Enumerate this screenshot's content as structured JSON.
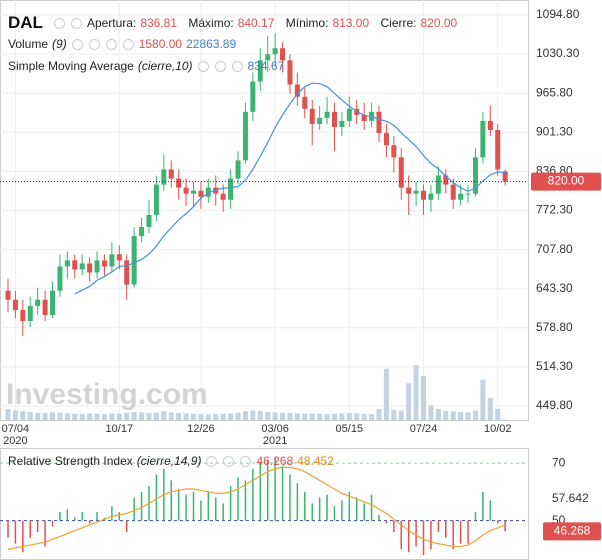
{
  "chart_data": [
    {
      "type": "candlestick",
      "symbol": "DAL",
      "quote": [
        {
          "label": "Apertura:",
          "value": "836.81"
        },
        {
          "label": "Máximo:",
          "value": "840.17"
        },
        {
          "label": "Mínimo:",
          "value": "813.00"
        },
        {
          "label": "Cierre:",
          "value": "820.00"
        }
      ],
      "categories": [
        null,
        "07/04",
        null,
        null,
        null,
        null,
        null,
        null,
        null,
        null,
        null,
        null,
        null,
        null,
        null,
        "10/17",
        null,
        null,
        null,
        null,
        null,
        null,
        null,
        null,
        null,
        null,
        "12/26",
        null,
        null,
        null,
        null,
        null,
        null,
        null,
        null,
        null,
        "03/06",
        null,
        null,
        null,
        null,
        null,
        null,
        null,
        null,
        null,
        "05/15",
        null,
        null,
        null,
        null,
        null,
        null,
        null,
        null,
        null,
        "07/24",
        null,
        null,
        null,
        null,
        null,
        null,
        null,
        null,
        null,
        "10/02",
        null
      ],
      "year_marks": [
        {
          "category": "07/04",
          "label": "2020"
        },
        {
          "category": "03/06",
          "label": "2021"
        }
      ],
      "ohlc": [
        [
          640,
          660,
          605,
          625
        ],
        [
          625,
          640,
          595,
          608
        ],
        [
          608,
          625,
          565,
          590
        ],
        [
          590,
          630,
          580,
          615
        ],
        [
          615,
          645,
          600,
          625
        ],
        [
          625,
          640,
          590,
          600
        ],
        [
          600,
          655,
          595,
          640
        ],
        [
          640,
          700,
          630,
          680
        ],
        [
          680,
          705,
          660,
          690
        ],
        [
          690,
          700,
          660,
          675
        ],
        [
          675,
          700,
          665,
          685
        ],
        [
          685,
          695,
          655,
          670
        ],
        [
          670,
          705,
          660,
          690
        ],
        [
          690,
          700,
          665,
          680
        ],
        [
          680,
          720,
          670,
          700
        ],
        [
          700,
          715,
          675,
          690
        ],
        [
          690,
          700,
          625,
          650
        ],
        [
          650,
          745,
          645,
          730
        ],
        [
          730,
          760,
          720,
          745
        ],
        [
          745,
          790,
          735,
          765
        ],
        [
          765,
          830,
          755,
          815
        ],
        [
          815,
          865,
          805,
          840
        ],
        [
          840,
          855,
          810,
          825
        ],
        [
          825,
          840,
          790,
          810
        ],
        [
          810,
          825,
          780,
          800
        ],
        [
          800,
          820,
          780,
          805
        ],
        [
          805,
          820,
          775,
          795
        ],
        [
          795,
          825,
          785,
          810
        ],
        [
          810,
          830,
          780,
          800
        ],
        [
          800,
          815,
          770,
          790
        ],
        [
          790,
          840,
          775,
          825
        ],
        [
          825,
          870,
          815,
          855
        ],
        [
          855,
          950,
          850,
          935
        ],
        [
          935,
          1000,
          920,
          985
        ],
        [
          985,
          1040,
          970,
          1020
        ],
        [
          1020,
          1060,
          1000,
          1030
        ],
        [
          1030,
          1065,
          1010,
          1040
        ],
        [
          1040,
          1050,
          1000,
          1020
        ],
        [
          1020,
          1030,
          965,
          980
        ],
        [
          980,
          1000,
          945,
          960
        ],
        [
          960,
          975,
          925,
          940
        ],
        [
          940,
          955,
          880,
          915
        ],
        [
          915,
          945,
          905,
          925
        ],
        [
          925,
          960,
          915,
          935
        ],
        [
          935,
          950,
          870,
          910
        ],
        [
          910,
          935,
          895,
          920
        ],
        [
          920,
          960,
          910,
          940
        ],
        [
          940,
          955,
          915,
          930
        ],
        [
          930,
          950,
          905,
          920
        ],
        [
          920,
          950,
          910,
          935
        ],
        [
          935,
          945,
          885,
          900
        ],
        [
          900,
          915,
          860,
          880
        ],
        [
          880,
          895,
          835,
          860
        ],
        [
          860,
          875,
          790,
          810
        ],
        [
          810,
          830,
          765,
          800
        ],
        [
          800,
          820,
          780,
          805
        ],
        [
          805,
          815,
          765,
          790
        ],
        [
          790,
          815,
          770,
          800
        ],
        [
          800,
          845,
          790,
          830
        ],
        [
          830,
          840,
          800,
          815
        ],
        [
          815,
          825,
          775,
          790
        ],
        [
          790,
          815,
          780,
          800
        ],
        [
          800,
          815,
          785,
          800
        ],
        [
          800,
          875,
          795,
          860
        ],
        [
          860,
          935,
          850,
          920
        ],
        [
          920,
          945,
          895,
          905
        ],
        [
          905,
          915,
          830,
          840
        ],
        [
          836.81,
          840.17,
          813,
          820
        ]
      ],
      "up_color": "#3cb371",
      "down_color": "#e0504e",
      "volume": {
        "name": "Volume",
        "params": "(9)",
        "last": "1580.00",
        "average": "22863.89",
        "color": "#c5d2e3",
        "values": [
          30000,
          26000,
          24000,
          22000,
          20000,
          19000,
          21000,
          20000,
          18000,
          17000,
          16000,
          18000,
          17000,
          16000,
          18000,
          17000,
          20000,
          22000,
          21000,
          19000,
          20000,
          24000,
          21000,
          19000,
          18000,
          17000,
          16000,
          15000,
          16000,
          17000,
          18000,
          20000,
          24000,
          26000,
          25000,
          22000,
          21000,
          20000,
          19000,
          18000,
          17000,
          18000,
          17000,
          16000,
          17000,
          18000,
          19000,
          18000,
          17000,
          16000,
          30000,
          140000,
          28000,
          26000,
          100000,
          150000,
          120000,
          40000,
          30000,
          25000,
          24000,
          22000,
          21000,
          26000,
          110000,
          60000,
          30000,
          1580
        ]
      },
      "sma": {
        "name": "Simple Moving Average",
        "params": "(cierre,10)",
        "last": "834.67",
        "color": "#4a90d9",
        "values": [
          null,
          null,
          null,
          null,
          null,
          null,
          null,
          null,
          null,
          634.8,
          640.8,
          647,
          657,
          663.5,
          671,
          680,
          681,
          686,
          691.5,
          700.5,
          713.5,
          730.5,
          744,
          757,
          767,
          778.5,
          793,
          801,
          806.5,
          809,
          810,
          811.5,
          822.5,
          840,
          862,
          884.5,
          909,
          930,
          948,
          965,
          976.5,
          982.5,
          981.5,
          976.5,
          965.5,
          954.5,
          944.5,
          935.5,
          929.5,
          927,
          923,
          919.5,
          913,
          900.5,
          889.5,
          878,
          863,
          850,
          841,
          829,
          818,
          810,
          804,
          809,
          821,
          831,
          836,
          834.67
        ]
      },
      "last_price": {
        "value": 820,
        "label": "820.00",
        "color": "#e0504e"
      },
      "watermark": "Investing.com",
      "ylim": [
        426.7,
        1119.5
      ],
      "yticks": [
        {
          "value": 1094.8,
          "label": "1094.80"
        },
        {
          "value": 1030.3,
          "label": "1030.30"
        },
        {
          "value": 965.8,
          "label": "965.80"
        },
        {
          "value": 901.3,
          "label": "901.30"
        },
        {
          "value": 836.8,
          "label": "836.80"
        },
        {
          "value": 772.3,
          "label": "772.30"
        },
        {
          "value": 707.8,
          "label": "707.80"
        },
        {
          "value": 643.3,
          "label": "643.30"
        },
        {
          "value": 578.8,
          "label": "578.80"
        },
        {
          "value": 514.3,
          "label": "514.30"
        },
        {
          "value": 449.8,
          "label": "449.80"
        }
      ],
      "grid": true
    },
    {
      "type": "rsi",
      "title": "Relative Strength Index",
      "params": "(cierre,14,9)",
      "rsi": {
        "last": "46.268",
        "up_color": "#3cb371",
        "down_color": "#e0504e",
        "values": [
          44,
          42,
          39,
          44,
          46,
          41,
          48,
          53,
          54,
          51,
          53,
          49,
          53,
          51,
          55,
          53,
          46,
          58,
          60,
          62,
          66,
          68,
          64,
          61,
          59,
          60,
          57,
          60,
          58,
          56,
          62,
          65,
          64,
          68,
          70,
          71,
          72,
          69,
          66,
          63,
          60,
          56,
          58,
          59,
          55,
          57,
          60,
          58,
          56,
          59,
          52,
          49,
          46,
          40,
          39,
          41,
          38,
          40,
          46,
          44,
          40,
          42,
          42,
          53,
          60,
          57,
          49,
          46.268
        ]
      },
      "signal": {
        "last": "48.452",
        "color": "#f0a030",
        "values": [
          40,
          40.5,
          41,
          41.5,
          42,
          42.5,
          43.5,
          44.5,
          45.5,
          46.5,
          47.5,
          48.5,
          49.5,
          50.5,
          51.5,
          52,
          52.5,
          53.5,
          54.5,
          56,
          57.5,
          59,
          60,
          60.5,
          61,
          61,
          60.5,
          60,
          59.5,
          59.5,
          60,
          61,
          62.5,
          64,
          65.5,
          67,
          68,
          68.5,
          68.5,
          68,
          67,
          65.5,
          64,
          62.5,
          61,
          59.5,
          58.5,
          57.5,
          56.5,
          55.5,
          54,
          52.5,
          50.5,
          48.5,
          46.5,
          45,
          43.5,
          42.5,
          42,
          41.5,
          41,
          41,
          41.5,
          43,
          45,
          46.5,
          47.5,
          48.452
        ]
      },
      "baseline": 50,
      "levels": [
        {
          "value": 70,
          "color": "#9cc29c"
        },
        {
          "value": 50,
          "color": "#3b4a9c"
        }
      ],
      "ylim": [
        36.3,
        74.9
      ],
      "yticks": [
        70,
        57.642,
        50
      ]
    }
  ]
}
